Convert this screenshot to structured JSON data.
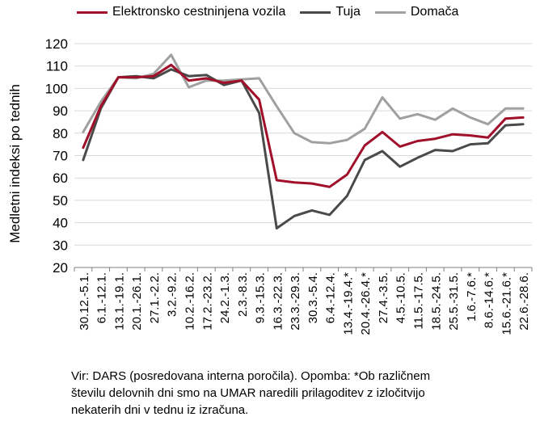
{
  "chart_data": {
    "type": "line",
    "ylabel": "Medletni indeksi po tednih",
    "xlabel": "",
    "ylim": [
      20,
      120
    ],
    "yticks": [
      20,
      30,
      40,
      50,
      60,
      70,
      80,
      90,
      100,
      110,
      120
    ],
    "grid": true,
    "legend_position": "top",
    "categories": [
      "30.12.-5.1.",
      "6.1.-12.1.",
      "13.1.-19.1.",
      "20.1.-26.1.",
      "27.1.-2.2.",
      "3.2.-9.2.",
      "10.2.-16.2.",
      "17.2.-23.2.",
      "24.2.-1.3.",
      "2.3.-8.3.",
      "9.3.-15.3.",
      "16.3.-22.3.",
      "23.3.-29.3.",
      "30.3.-5.4.",
      "6.4.-12.4.",
      "13.4.-19.4.*",
      "20.4.-26.4.*",
      "27.4.-3.5.",
      "4.5.-10.5.",
      "11.5.-17.5.",
      "18.5.-24.5.",
      "25.5.-31.5.",
      "1.6.-7.6.*",
      "8.6.-14.6.*",
      "15.6.-21.6.*",
      "22.6.-28.6."
    ],
    "series": [
      {
        "name": "Elektronsko cestninjena vozila",
        "color": "#a0102a",
        "values": [
          73.5,
          92,
          105,
          105,
          105.5,
          110.5,
          103.5,
          104.5,
          102.5,
          103.5,
          95,
          59,
          58,
          57.5,
          56,
          61.5,
          74.5,
          80.5,
          74,
          76.5,
          77.5,
          79.5,
          79,
          78,
          86.5,
          87
        ]
      },
      {
        "name": "Tuja",
        "color": "#4a4a4a",
        "values": [
          68,
          91,
          105,
          105.5,
          104.5,
          108.5,
          105.5,
          106,
          101.5,
          103.5,
          89,
          37.5,
          43,
          45.5,
          43.5,
          52,
          68,
          72,
          65,
          69,
          72.5,
          72,
          75,
          75.5,
          83.5,
          84
        ]
      },
      {
        "name": "Domača",
        "color": "#a0a0a0",
        "values": [
          80.5,
          94,
          105,
          104.5,
          106.5,
          115,
          100.5,
          103.5,
          103.5,
          104,
          104.5,
          92,
          80,
          76,
          75.5,
          77,
          82,
          96,
          86.5,
          88.5,
          86,
          91,
          87,
          84,
          91,
          91
        ]
      }
    ]
  },
  "footnote": {
    "line1": "Vir: DARS (posredovana interna poročila). Opomba: *Ob različnem",
    "line2": "številu delovnih dni smo na UMAR naredili prilagoditev z izločitvijo",
    "line3": "nekaterih dni v tednu iz izračuna."
  }
}
